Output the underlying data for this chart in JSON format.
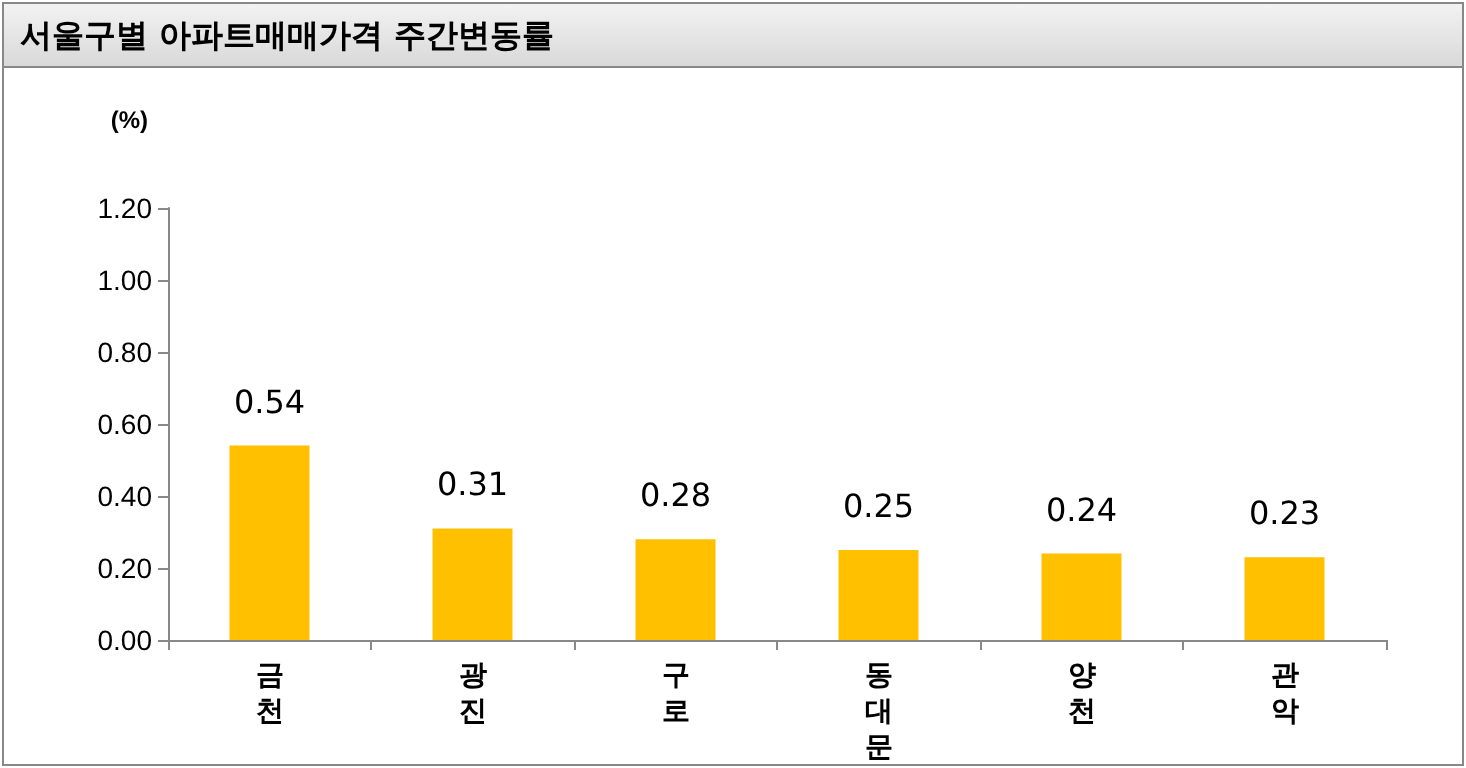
{
  "chart_data": {
    "type": "bar",
    "title": "서울구별 아파트매매가격 주간변동률",
    "ylabel": "(%)",
    "categories": [
      "금천",
      "광진",
      "구로",
      "동대문",
      "양천",
      "관악"
    ],
    "values": [
      0.54,
      0.31,
      0.28,
      0.25,
      0.24,
      0.23
    ],
    "color": "#ffc000",
    "ylim": [
      0,
      1.2
    ],
    "yticks": [
      {
        "value": 0,
        "label": "0.00"
      },
      {
        "value": 0.2,
        "label": "0.20"
      },
      {
        "value": 0.4,
        "label": "0.40"
      },
      {
        "value": 0.6,
        "label": "0.60"
      },
      {
        "value": 0.8,
        "label": "0.80"
      },
      {
        "value": 1,
        "label": "1.00"
      },
      {
        "value": 1.2,
        "label": "1.20"
      }
    ],
    "data_labels": true
  }
}
